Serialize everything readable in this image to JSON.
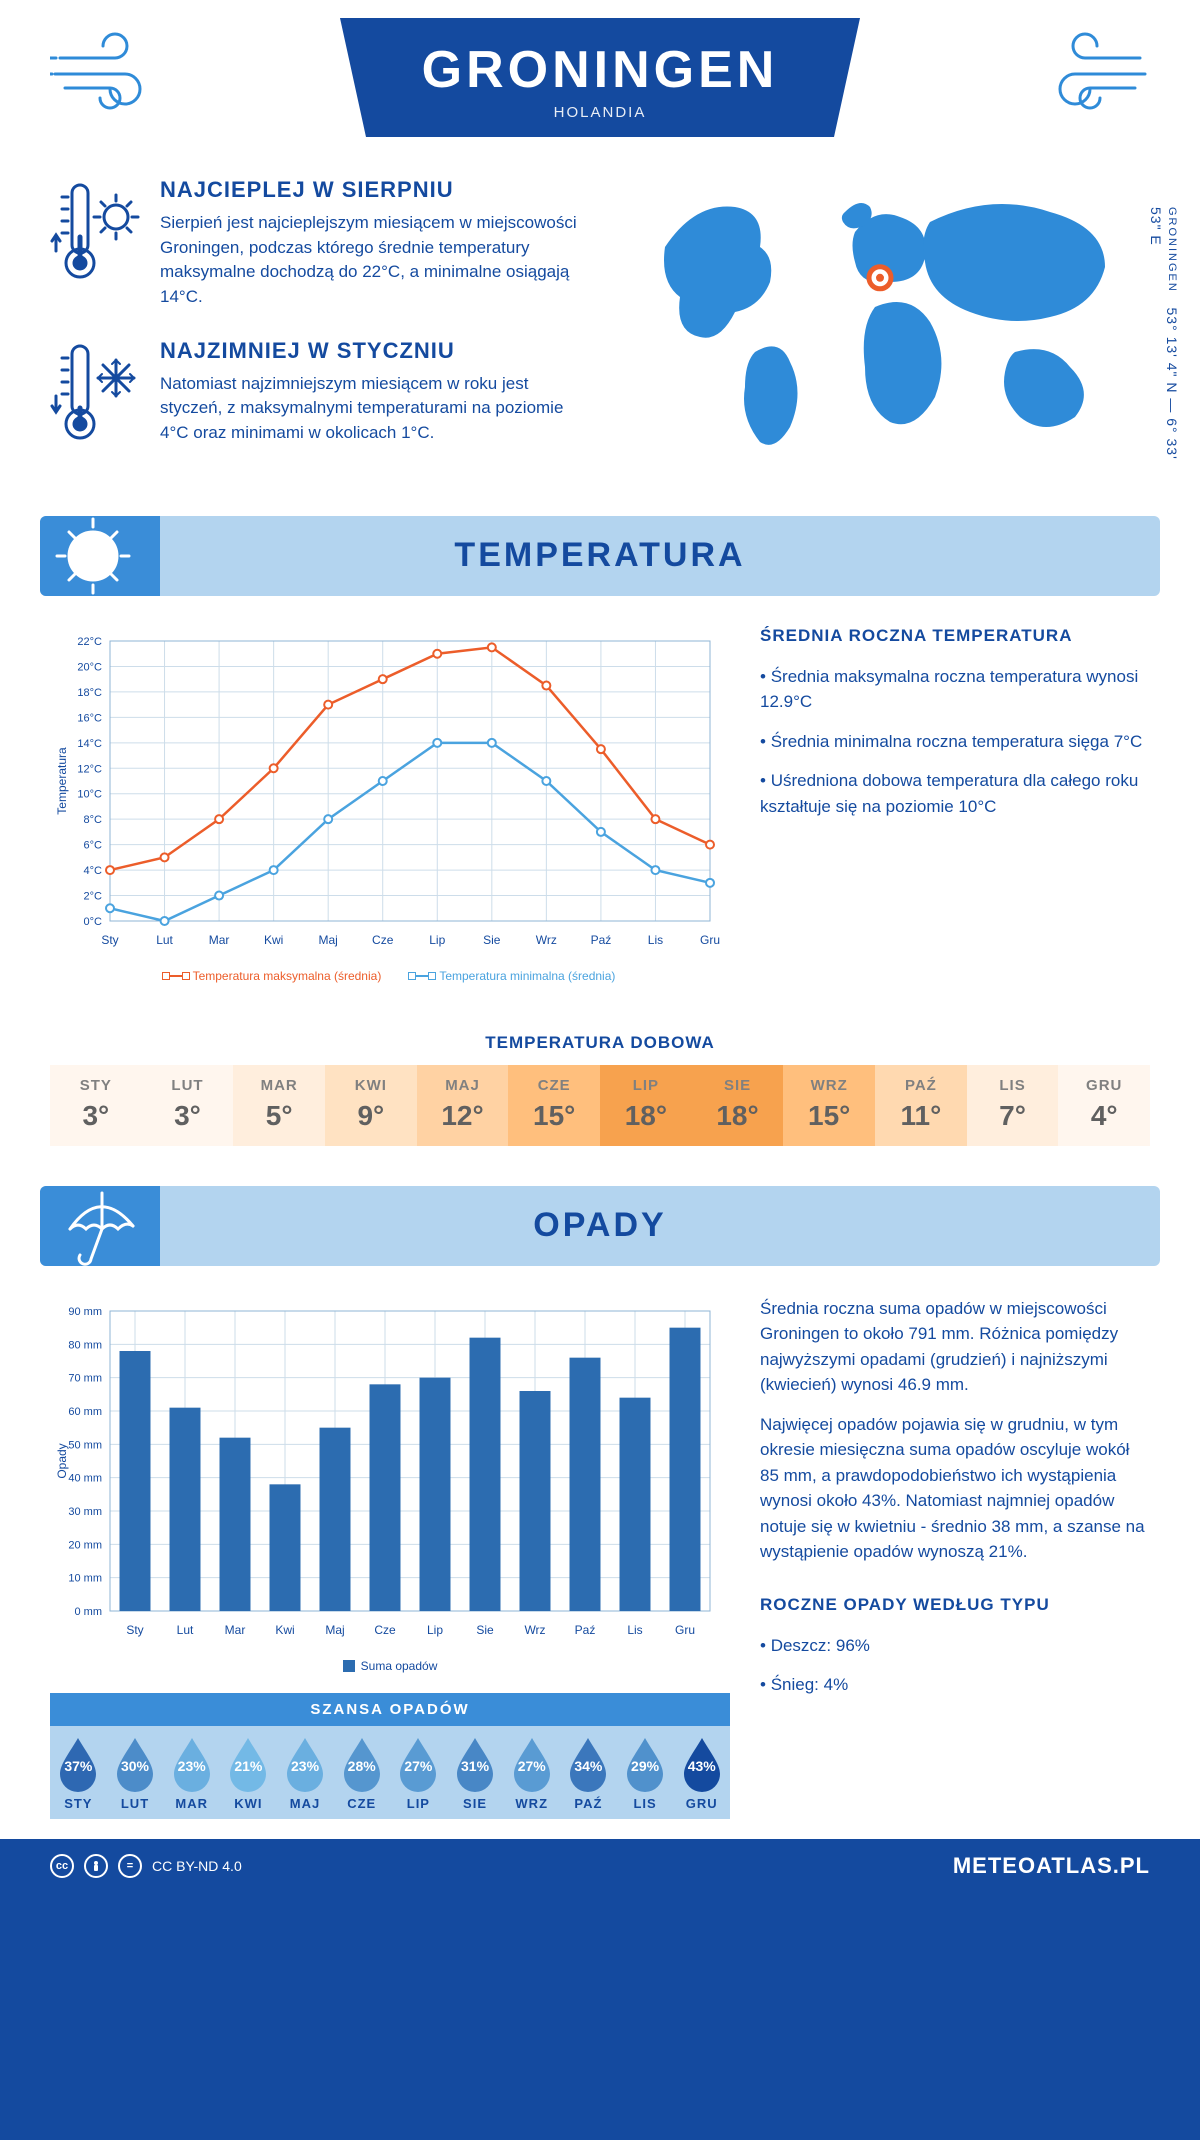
{
  "header": {
    "city": "GRONINGEN",
    "country": "HOLANDIA",
    "coords_line": "53° 13' 4\" N — 6° 33' 53\" E",
    "coords_city": "GRONINGEN"
  },
  "facts": {
    "warm": {
      "title": "NAJCIEPLEJ W SIERPNIU",
      "body": "Sierpień jest najcieplejszym miesiącem w miejscowości Groningen, podczas którego średnie temperatury maksymalne dochodzą do 22°C, a minimalne osiągają 14°C."
    },
    "cold": {
      "title": "NAJZIMNIEJ W STYCZNIU",
      "body": "Natomiast najzimniejszym miesiącem w roku jest styczeń, z maksymalnymi temperaturami na poziomie 4°C oraz minimami w okolicach 1°C."
    }
  },
  "months_short": [
    "Sty",
    "Lut",
    "Mar",
    "Kwi",
    "Maj",
    "Cze",
    "Lip",
    "Sie",
    "Wrz",
    "Paź",
    "Lis",
    "Gru"
  ],
  "months_upper": [
    "STY",
    "LUT",
    "MAR",
    "KWI",
    "MAJ",
    "CZE",
    "LIP",
    "SIE",
    "WRZ",
    "PAŹ",
    "LIS",
    "GRU"
  ],
  "temperature": {
    "section_title": "TEMPERATURA",
    "max": [
      4,
      5,
      8,
      12,
      17,
      19,
      21,
      21.5,
      18.5,
      13.5,
      8,
      6
    ],
    "min": [
      1,
      0,
      2,
      4,
      8,
      11,
      14,
      14,
      11,
      7,
      4,
      3
    ],
    "ylim": [
      0,
      22
    ],
    "ytick_step": 2,
    "y_unit": "°C",
    "y_axis_label": "Temperatura",
    "line_colors": {
      "max": "#ec5d2a",
      "min": "#4aa3df"
    },
    "legend": {
      "max": "Temperatura maksymalna (średnia)",
      "min": "Temperatura minimalna (średnia)"
    },
    "side": {
      "title": "ŚREDNIA ROCZNA TEMPERATURA",
      "bullets": [
        "Średnia maksymalna roczna temperatura wynosi 12.9°C",
        "Średnia minimalna roczna temperatura sięga 7°C",
        "Uśredniona dobowa temperatura dla całego roku kształtuje się na poziomie 10°C"
      ]
    }
  },
  "heatmap": {
    "title": "TEMPERATURA DOBOWA",
    "values": [
      3,
      3,
      5,
      9,
      12,
      15,
      18,
      18,
      15,
      11,
      7,
      4
    ],
    "unit": "°",
    "colors": [
      "#fff6ee",
      "#fff6ee",
      "#ffeedd",
      "#ffe2c2",
      "#ffd2a3",
      "#ffbf7d",
      "#f7a24e",
      "#f7a24e",
      "#ffbf7d",
      "#ffd9b0",
      "#ffeedd",
      "#fff6ee"
    ]
  },
  "precip": {
    "section_title": "OPADY",
    "values": [
      78,
      61,
      52,
      38,
      55,
      68,
      70,
      82,
      66,
      76,
      64,
      85
    ],
    "ylim": [
      0,
      90
    ],
    "ytick_step": 10,
    "y_unit": " mm",
    "y_axis_label": "Opady",
    "bar_color": "#2c6cb0",
    "legend": "Suma opadów",
    "side": {
      "para1": "Średnia roczna suma opadów w miejscowości Groningen to około 791 mm. Różnica pomiędzy najwyższymi opadami (grudzień) i najniższymi (kwiecień) wynosi 46.9 mm.",
      "para2": "Najwięcej opadów pojawia się w grudniu, w tym okresie miesięczna suma opadów oscyluje wokół 85 mm, a prawdopodobieństwo ich wystąpienia wynosi około 43%. Natomiast najmniej opadów notuje się w kwietniu - średnio 38 mm, a szanse na wystąpienie opadów wynoszą 21%.",
      "type_title": "ROCZNE OPADY WEDŁUG TYPU",
      "type_bullets": [
        "Deszcz: 96%",
        "Śnieg: 4%"
      ]
    }
  },
  "chance": {
    "title": "SZANSA OPADÓW",
    "values": [
      37,
      30,
      23,
      21,
      23,
      28,
      27,
      31,
      27,
      34,
      29,
      43
    ]
  },
  "footer": {
    "license": "CC BY-ND 4.0",
    "brand": "METEOATLAS.PL"
  },
  "map": {
    "land_color": "#2f8bd8",
    "pin_color": "#ec5d2a",
    "pin_x": 0.5,
    "pin_y": 0.36
  }
}
